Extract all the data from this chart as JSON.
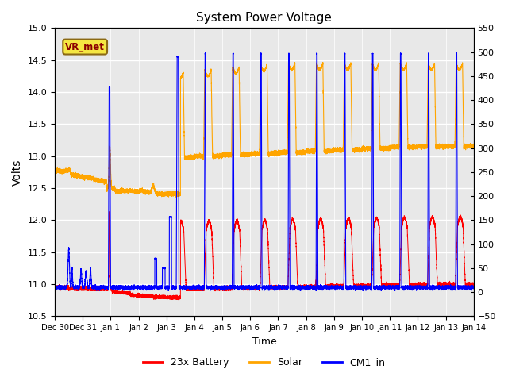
{
  "title": "System Power Voltage",
  "xlabel": "Time",
  "ylabel_left": "Volts",
  "ylabel_right": "",
  "ylim_left": [
    10.5,
    15.0
  ],
  "ylim_right": [
    -50,
    550
  ],
  "plot_bg_color": "#e8e8e8",
  "legend_items": [
    "23x Battery",
    "Solar",
    "CM1_in"
  ],
  "legend_colors": [
    "red",
    "orange",
    "blue"
  ],
  "annotation_text": "VR_met",
  "annotation_box_facecolor": "#f5e642",
  "annotation_box_edgecolor": "#8b6914",
  "annotation_text_color": "#8b0000",
  "x_tick_labels": [
    "Dec 30",
    "Dec 31",
    "Jan 1",
    "Jan 2",
    "Jan 3",
    "Jan 4",
    "Jan 5",
    "Jan 6",
    "Jan 7",
    "Jan 8",
    "Jan 9",
    "Jan 10",
    "Jan 11",
    "Jan 12",
    "Jan 13",
    "Jan 14"
  ],
  "x_tick_positions": [
    0,
    1,
    2,
    3,
    4,
    5,
    6,
    7,
    8,
    9,
    10,
    11,
    12,
    13,
    14,
    15
  ],
  "yticks_left": [
    10.5,
    11.0,
    11.5,
    12.0,
    12.5,
    13.0,
    13.5,
    14.0,
    14.5,
    15.0
  ],
  "yticks_right": [
    -50,
    0,
    50,
    100,
    150,
    200,
    250,
    300,
    350,
    400,
    450,
    500,
    550
  ]
}
